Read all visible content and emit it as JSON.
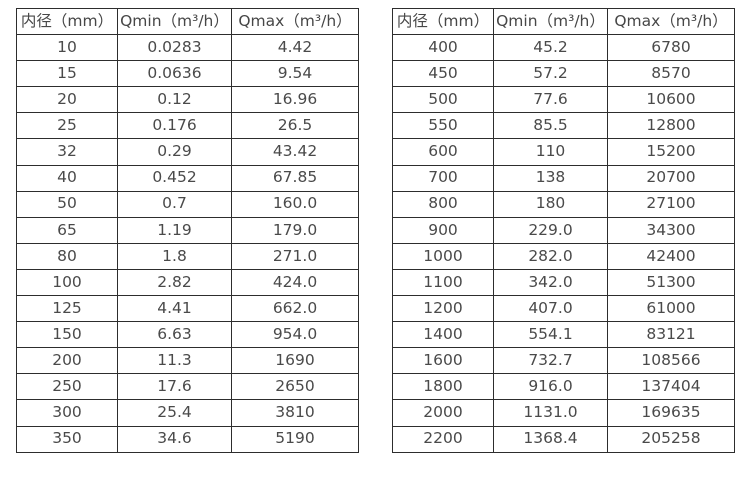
{
  "page": {
    "background_color": "#ffffff",
    "text_color": "#4a4a4a",
    "border_color": "#2d2d2d"
  },
  "tables": [
    {
      "name": "flow-table-small-diameters",
      "headers": [
        "内径（mm）",
        "Qmin（m³/h）",
        "Qmax（m³/h）"
      ],
      "rows": [
        [
          "10",
          "0.0283",
          "4.42"
        ],
        [
          "15",
          "0.0636",
          "9.54"
        ],
        [
          "20",
          "0.12",
          "16.96"
        ],
        [
          "25",
          "0.176",
          "26.5"
        ],
        [
          "32",
          "0.29",
          "43.42"
        ],
        [
          "40",
          "0.452",
          "67.85"
        ],
        [
          "50",
          "0.7",
          "160.0"
        ],
        [
          "65",
          "1.19",
          "179.0"
        ],
        [
          "80",
          "1.8",
          "271.0"
        ],
        [
          "100",
          "2.82",
          "424.0"
        ],
        [
          "125",
          "4.41",
          "662.0"
        ],
        [
          "150",
          "6.63",
          "954.0"
        ],
        [
          "200",
          "11.3",
          "1690"
        ],
        [
          "250",
          "17.6",
          "2650"
        ],
        [
          "300",
          "25.4",
          "3810"
        ],
        [
          "350",
          "34.6",
          "5190"
        ]
      ]
    },
    {
      "name": "flow-table-large-diameters",
      "headers": [
        "内径（mm）",
        "Qmin（m³/h）",
        "Qmax（m³/h）"
      ],
      "rows": [
        [
          "400",
          "45.2",
          "6780"
        ],
        [
          "450",
          "57.2",
          "8570"
        ],
        [
          "500",
          "77.6",
          "10600"
        ],
        [
          "550",
          "85.5",
          "12800"
        ],
        [
          "600",
          "110",
          "15200"
        ],
        [
          "700",
          "138",
          "20700"
        ],
        [
          "800",
          "180",
          "27100"
        ],
        [
          "900",
          "229.0",
          "34300"
        ],
        [
          "1000",
          "282.0",
          "42400"
        ],
        [
          "1100",
          "342.0",
          "51300"
        ],
        [
          "1200",
          "407.0",
          "61000"
        ],
        [
          "1400",
          "554.1",
          "83121"
        ],
        [
          "1600",
          "732.7",
          "108566"
        ],
        [
          "1800",
          "916.0",
          "137404"
        ],
        [
          "2000",
          "1131.0",
          "169635"
        ],
        [
          "2200",
          "1368.4",
          "205258"
        ]
      ]
    }
  ]
}
